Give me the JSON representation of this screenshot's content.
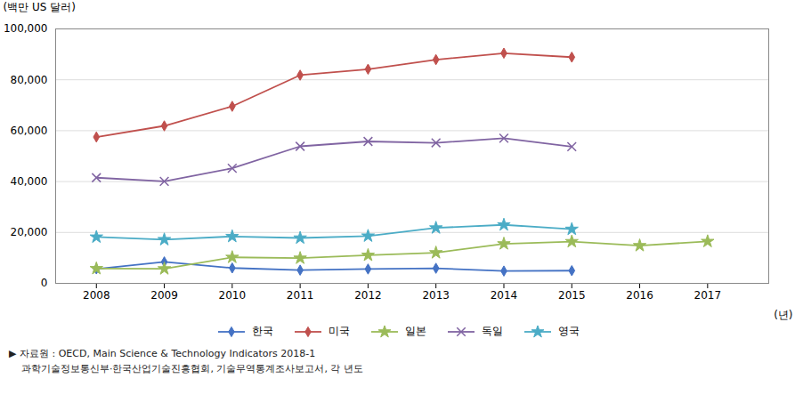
{
  "chart_data": {
    "type": "line",
    "x": [
      2008,
      2009,
      2010,
      2011,
      2012,
      2013,
      2014,
      2015,
      2016,
      2017
    ],
    "xlim": [
      2007.4,
      2017.9
    ],
    "xticks": [
      2008,
      2009,
      2010,
      2011,
      2012,
      2013,
      2014,
      2015,
      2016,
      2017
    ],
    "ylim": [
      0,
      100000
    ],
    "yticks": [
      0,
      {
        "value": 20000,
        "label": "20,000"
      },
      {
        "value": 40000,
        "label": "40,000"
      },
      {
        "value": 60000,
        "label": "60,000"
      },
      {
        "value": 80000,
        "label": "80,000"
      },
      {
        "value": 100000,
        "label": "100,000"
      }
    ],
    "x_label": "(년)",
    "y_label": "(백만 US 달러)",
    "annotations": [
      "▶ 자료원 : OECD, Main Science & Technology Indicators 2018-1",
      "    과학기술정보통신부·한국산업기술진흥협회, 기술무역통계조사보고서, 각 년도"
    ],
    "grid": true,
    "legend": "bottom",
    "series": [
      {
        "name": "한국",
        "color": "#4472C4",
        "marker": "diamond",
        "values": [
          5670,
          8438,
          6039,
          5197,
          5623,
          5920,
          4843,
          4979,
          null,
          null
        ]
      },
      {
        "name": "미국",
        "color": "#C0504D",
        "marker": "diamond",
        "values": [
          57509,
          61884,
          69577,
          81826,
          84168,
          87920,
          90459,
          88891,
          null,
          null
        ]
      },
      {
        "name": "일본",
        "color": "#9BBB59",
        "marker": "star",
        "values": [
          5805,
          5717,
          10234,
          9900,
          11052,
          12038,
          15540,
          16409,
          14842,
          16476
        ]
      },
      {
        "name": "독일",
        "color": "#8064A2",
        "marker": "x",
        "values": [
          41529,
          40078,
          45208,
          53847,
          55773,
          55233,
          57026,
          53734,
          null,
          null
        ]
      },
      {
        "name": "영국",
        "color": "#4BACC6",
        "marker": "star",
        "values": [
          18205,
          17208,
          18435,
          17826,
          18599,
          21788,
          22995,
          21280,
          null,
          null
        ]
      }
    ]
  }
}
